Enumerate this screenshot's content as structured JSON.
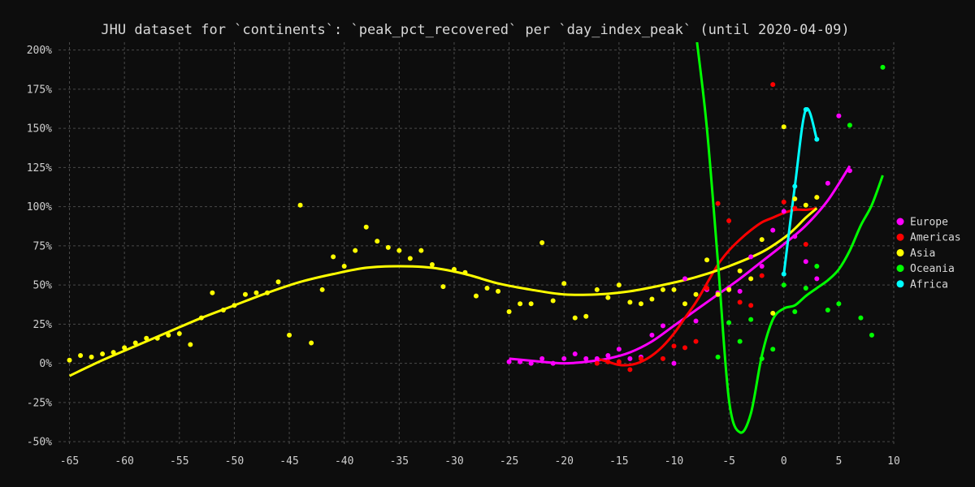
{
  "chart_data": {
    "type": "scatter",
    "title": "JHU dataset for `continents`: `peak_pct_recovered` per `day_index_peak` (until 2020-04-09)",
    "xlabel": "",
    "ylabel": "",
    "xlim": [
      -66,
      10
    ],
    "ylim": [
      -52,
      205
    ],
    "x_ticks": [
      -65,
      -60,
      -55,
      -50,
      -45,
      -40,
      -35,
      -30,
      -25,
      -20,
      -15,
      -10,
      -5,
      0,
      5,
      10
    ],
    "y_ticks": [
      -50,
      -25,
      0,
      25,
      50,
      75,
      100,
      125,
      150,
      175,
      200
    ],
    "x_tick_labels": [
      "-65",
      "-60",
      "-55",
      "-50",
      "-45",
      "-40",
      "-35",
      "-30",
      "-25",
      "-20",
      "-15",
      "-10",
      "-5",
      "0",
      "5",
      "10"
    ],
    "y_tick_labels": [
      "-50%",
      "-25%",
      "0%",
      "25%",
      "50%",
      "75%",
      "100%",
      "125%",
      "150%",
      "175%",
      "200%"
    ],
    "grid": true,
    "legend_position": "right",
    "series": [
      {
        "name": "Europe",
        "color": "#ff00ff",
        "points": [
          [
            -25,
            1
          ],
          [
            -24,
            1
          ],
          [
            -23,
            0
          ],
          [
            -22,
            3
          ],
          [
            -21,
            0
          ],
          [
            -20,
            3
          ],
          [
            -19,
            6
          ],
          [
            -18,
            3
          ],
          [
            -17,
            3
          ],
          [
            -16,
            5
          ],
          [
            -15,
            9
          ],
          [
            -14,
            3
          ],
          [
            -13,
            4
          ],
          [
            -12,
            18
          ],
          [
            -11,
            24
          ],
          [
            -10,
            0
          ],
          [
            -9,
            54
          ],
          [
            -8,
            27
          ],
          [
            -7,
            47
          ],
          [
            -6,
            45
          ],
          [
            -5,
            48
          ],
          [
            -4,
            46
          ],
          [
            -3,
            68
          ],
          [
            -2,
            62
          ],
          [
            -1,
            85
          ],
          [
            0,
            97
          ],
          [
            1,
            81
          ],
          [
            2,
            65
          ],
          [
            3,
            54
          ],
          [
            4,
            115
          ],
          [
            5,
            158
          ],
          [
            6,
            123
          ]
        ],
        "fit": [
          [
            -25,
            3
          ],
          [
            -22,
            1
          ],
          [
            -20,
            0
          ],
          [
            -18,
            1
          ],
          [
            -16,
            3
          ],
          [
            -14,
            7
          ],
          [
            -12,
            14
          ],
          [
            -10,
            24
          ],
          [
            -8,
            34
          ],
          [
            -6,
            44
          ],
          [
            -4,
            54
          ],
          [
            -2,
            65
          ],
          [
            0,
            76
          ],
          [
            2,
            88
          ],
          [
            4,
            104
          ],
          [
            6,
            126
          ]
        ]
      },
      {
        "name": "Americas",
        "color": "#ff0000",
        "points": [
          [
            -17,
            0
          ],
          [
            -16,
            1
          ],
          [
            -15,
            1
          ],
          [
            -14,
            -4
          ],
          [
            -13,
            3
          ],
          [
            -11,
            3
          ],
          [
            -10,
            11
          ],
          [
            -9,
            10
          ],
          [
            -8,
            14
          ],
          [
            -7,
            48
          ],
          [
            -6,
            102
          ],
          [
            -5,
            91
          ],
          [
            -4,
            39
          ],
          [
            -3,
            37
          ],
          [
            -2,
            56
          ],
          [
            -1,
            178
          ],
          [
            0,
            103
          ],
          [
            1,
            99
          ],
          [
            2,
            76
          ],
          [
            3,
            106
          ]
        ],
        "fit": [
          [
            -17,
            3
          ],
          [
            -16,
            1
          ],
          [
            -15,
            -1
          ],
          [
            -14,
            -1
          ],
          [
            -13,
            1
          ],
          [
            -12,
            5
          ],
          [
            -11,
            11
          ],
          [
            -10,
            19
          ],
          [
            -9,
            29
          ],
          [
            -8,
            39
          ],
          [
            -7,
            51
          ],
          [
            -6,
            63
          ],
          [
            -5,
            72
          ],
          [
            -4,
            79
          ],
          [
            -3,
            85
          ],
          [
            -2,
            90
          ],
          [
            -1,
            93
          ],
          [
            0,
            96
          ],
          [
            1,
            98
          ],
          [
            2,
            98
          ],
          [
            3,
            99
          ]
        ]
      },
      {
        "name": "Asia",
        "color": "#ffff00",
        "points": [
          [
            -65,
            2
          ],
          [
            -64,
            5
          ],
          [
            -63,
            4
          ],
          [
            -62,
            6
          ],
          [
            -61,
            7
          ],
          [
            -60,
            10
          ],
          [
            -59,
            13
          ],
          [
            -58,
            16
          ],
          [
            -57,
            16
          ],
          [
            -56,
            18
          ],
          [
            -55,
            19
          ],
          [
            -54,
            12
          ],
          [
            -53,
            29
          ],
          [
            -52,
            45
          ],
          [
            -51,
            34
          ],
          [
            -50,
            37
          ],
          [
            -49,
            44
          ],
          [
            -48,
            45
          ],
          [
            -47,
            45
          ],
          [
            -46,
            52
          ],
          [
            -45,
            18
          ],
          [
            -44,
            101
          ],
          [
            -43,
            13
          ],
          [
            -42,
            47
          ],
          [
            -41,
            68
          ],
          [
            -40,
            62
          ],
          [
            -39,
            72
          ],
          [
            -38,
            87
          ],
          [
            -37,
            78
          ],
          [
            -36,
            74
          ],
          [
            -35,
            72
          ],
          [
            -34,
            67
          ],
          [
            -33,
            72
          ],
          [
            -32,
            63
          ],
          [
            -31,
            49
          ],
          [
            -30,
            60
          ],
          [
            -29,
            58
          ],
          [
            -28,
            43
          ],
          [
            -27,
            48
          ],
          [
            -26,
            46
          ],
          [
            -25,
            33
          ],
          [
            -24,
            38
          ],
          [
            -23,
            38
          ],
          [
            -22,
            77
          ],
          [
            -21,
            40
          ],
          [
            -20,
            51
          ],
          [
            -19,
            29
          ],
          [
            -18,
            30
          ],
          [
            -17,
            47
          ],
          [
            -16,
            42
          ],
          [
            -15,
            50
          ],
          [
            -14,
            39
          ],
          [
            -13,
            38
          ],
          [
            -12,
            41
          ],
          [
            -11,
            47
          ],
          [
            -10,
            47
          ],
          [
            -9,
            38
          ],
          [
            -8,
            44
          ],
          [
            -7,
            66
          ],
          [
            -6,
            44
          ],
          [
            -5,
            47
          ],
          [
            -4,
            59
          ],
          [
            -3,
            54
          ],
          [
            -2,
            79
          ],
          [
            -1,
            32
          ],
          [
            0,
            151
          ],
          [
            1,
            105
          ],
          [
            2,
            101
          ],
          [
            3,
            106
          ]
        ],
        "fit": [
          [
            -65,
            -8
          ],
          [
            -62,
            2
          ],
          [
            -59,
            11
          ],
          [
            -56,
            20
          ],
          [
            -53,
            29
          ],
          [
            -50,
            37
          ],
          [
            -47,
            45
          ],
          [
            -44,
            52
          ],
          [
            -41,
            57
          ],
          [
            -38,
            61
          ],
          [
            -35,
            62
          ],
          [
            -32,
            61
          ],
          [
            -29,
            57
          ],
          [
            -26,
            51
          ],
          [
            -23,
            47
          ],
          [
            -20,
            44
          ],
          [
            -17,
            44
          ],
          [
            -14,
            46
          ],
          [
            -11,
            50
          ],
          [
            -8,
            55
          ],
          [
            -5,
            62
          ],
          [
            -2,
            71
          ],
          [
            0,
            80
          ],
          [
            1,
            86
          ],
          [
            2,
            93
          ],
          [
            3,
            99
          ]
        ]
      },
      {
        "name": "Oceania",
        "color": "#00ff00",
        "points": [
          [
            -6,
            4
          ],
          [
            -5,
            26
          ],
          [
            -4,
            14
          ],
          [
            -3,
            28
          ],
          [
            -2,
            3
          ],
          [
            -1,
            9
          ],
          [
            0,
            50
          ],
          [
            1,
            33
          ],
          [
            2,
            48
          ],
          [
            3,
            62
          ],
          [
            4,
            34
          ],
          [
            5,
            38
          ],
          [
            6,
            152
          ],
          [
            7,
            29
          ],
          [
            8,
            18
          ],
          [
            9,
            189
          ]
        ],
        "fit": [
          [
            -7.9,
            205
          ],
          [
            -7,
            150
          ],
          [
            -6,
            65
          ],
          [
            -5,
            -23
          ],
          [
            -4,
            -44
          ],
          [
            -3,
            -32
          ],
          [
            -2,
            5
          ],
          [
            -1,
            28
          ],
          [
            0,
            35
          ],
          [
            1,
            37
          ],
          [
            2,
            43
          ],
          [
            3,
            48
          ],
          [
            4,
            53
          ],
          [
            5,
            60
          ],
          [
            6,
            72
          ],
          [
            7,
            88
          ],
          [
            8,
            101
          ],
          [
            9,
            120
          ]
        ]
      },
      {
        "name": "Africa",
        "color": "#00ffff",
        "points": [
          [
            0,
            57
          ],
          [
            1,
            113
          ],
          [
            2,
            162
          ],
          [
            3,
            143
          ]
        ],
        "fit": [
          [
            0,
            57
          ],
          [
            1,
            113
          ],
          [
            2,
            162
          ],
          [
            3,
            143
          ]
        ]
      }
    ]
  }
}
